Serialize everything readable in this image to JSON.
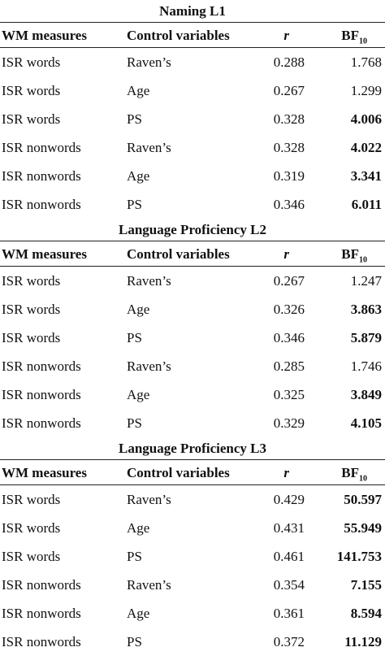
{
  "header": {
    "wm": "WM measures",
    "control": "Control variables",
    "r": "r",
    "bf": "BF",
    "bf_sub": "10"
  },
  "sections": [
    {
      "title": "Naming L1",
      "rows": [
        [
          "ISR words",
          "Raven’s",
          "0.288",
          "1.768"
        ],
        [
          "ISR words",
          "Age",
          "0.267",
          "1.299"
        ],
        [
          "ISR words",
          "PS",
          "0.328",
          "4.006"
        ],
        [
          "ISR nonwords",
          "Raven’s",
          "0.328",
          "4.022"
        ],
        [
          "ISR nonwords",
          "Age",
          "0.319",
          "3.341"
        ],
        [
          "ISR nonwords",
          "PS",
          "0.346",
          "6.011"
        ]
      ],
      "bold_bf": [
        false,
        false,
        true,
        true,
        true,
        true
      ]
    },
    {
      "title": "Language Proficiency L2",
      "rows": [
        [
          "ISR words",
          "Raven’s",
          "0.267",
          "1.247"
        ],
        [
          "ISR words",
          "Age",
          "0.326",
          "3.863"
        ],
        [
          "ISR words",
          "PS",
          "0.346",
          "5.879"
        ],
        [
          "ISR nonwords",
          "Raven’s",
          "0.285",
          "1.746"
        ],
        [
          "ISR nonwords",
          "Age",
          "0.325",
          "3.849"
        ],
        [
          "ISR nonwords",
          "PS",
          "0.329",
          "4.105"
        ]
      ],
      "bold_bf": [
        false,
        true,
        true,
        false,
        true,
        true
      ]
    },
    {
      "title": "Language Proficiency L3",
      "rows": [
        [
          "ISR words",
          "Raven’s",
          "0.429",
          "50.597"
        ],
        [
          "ISR words",
          "Age",
          "0.431",
          "55.949"
        ],
        [
          "ISR words",
          "PS",
          "0.461",
          "141.753"
        ],
        [
          "ISR nonwords",
          "Raven’s",
          "0.354",
          "7.155"
        ],
        [
          "ISR nonwords",
          "Age",
          "0.361",
          "8.594"
        ],
        [
          "ISR nonwords",
          "PS",
          "0.372",
          "11.129"
        ]
      ],
      "bold_bf": [
        true,
        true,
        true,
        true,
        true,
        true
      ]
    }
  ]
}
